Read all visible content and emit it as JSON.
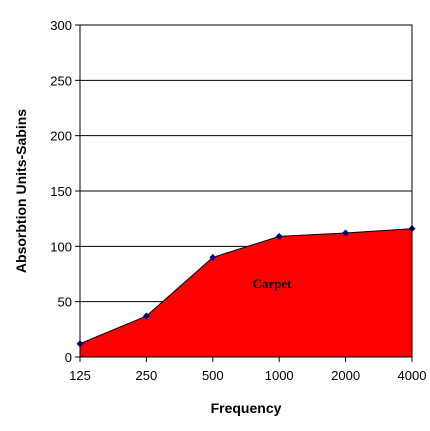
{
  "chart_data": {
    "type": "area",
    "categories": [
      "125",
      "250",
      "500",
      "1000",
      "2000",
      "4000"
    ],
    "series": [
      {
        "name": "Carpet",
        "values": [
          12,
          37,
          90,
          109,
          112,
          116
        ]
      }
    ],
    "title": "",
    "xlabel": "Frequency",
    "ylabel": "Absorbtion Units-Sabins",
    "ylim": [
      0,
      300
    ],
    "yticks": [
      "0",
      "50",
      "100",
      "150",
      "200",
      "250",
      "300"
    ],
    "grid": "horizontal",
    "legend": "none",
    "colors": {
      "fill": "#ff0000",
      "marker": "#000080",
      "grid": "#000000"
    }
  }
}
